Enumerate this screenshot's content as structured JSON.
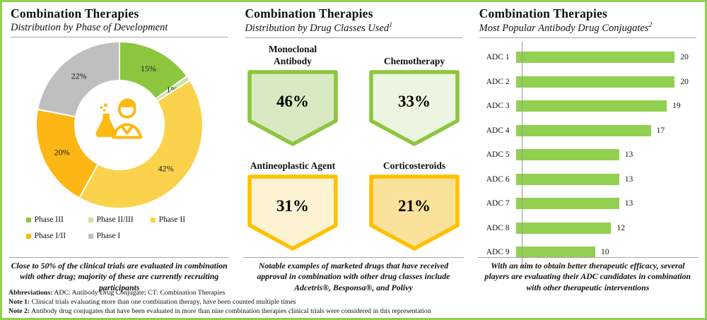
{
  "accent_colors": {
    "frame_green": "#92D050",
    "amber": "#FFC000",
    "rule_gray": "#A6A6A6"
  },
  "panels": {
    "phase": {
      "title": "Combination Therapies",
      "subtitle": "Distribution by Phase of Development",
      "summary": "Close to 50% of the clinical trials are evaluated in combination with other drug; majority of these are currently recruiting participants"
    },
    "classes": {
      "title": "Combination Therapies",
      "subtitle": "Distribution by Drug Classes Used",
      "subtitle_sup": "1",
      "summary": "Notable examples of marketed drugs that have received approval in combination with other drug classes include Adcetris®, Besponsa®, and Polivy"
    },
    "adc": {
      "title": "Combination Therapies",
      "subtitle": "Most Popular Antibody Drug Conjugates",
      "subtitle_sup": "2",
      "summary": "With an aim to obtain better therapeutic efficacy, several players are evaluating their ADC candidates in combination with other therapeutic interventions"
    }
  },
  "chart_data": [
    {
      "type": "pie",
      "donut": true,
      "title": "Distribution by Phase of Development",
      "labels": [
        "Phase III",
        "Phase II/III",
        "Phase II",
        "Phase I/II",
        "Phase I"
      ],
      "values": [
        15,
        1,
        42,
        20,
        22
      ],
      "unit": "%",
      "colors": [
        "#8CC63F",
        "#C9E3A2",
        "#FBD24C",
        "#FDB714",
        "#BFBFBF"
      ],
      "start_angle_deg": 0,
      "direction": "clockwise",
      "legend_position": "bottom",
      "center_icon": "scientist-flask-icon",
      "center_icon_color": "#FDB913"
    },
    {
      "type": "bar",
      "title": "Distribution by Drug Classes Used",
      "unit": "%",
      "items": [
        {
          "label": "Monoclonal\nAntibody",
          "value": "46%",
          "fill": "#D9E9C2",
          "border": "#8CC63F"
        },
        {
          "label": "Chemotherapy",
          "value": "33%",
          "fill": "#ECF5E0",
          "border": "#8CC63F"
        },
        {
          "label": "Antineoplastic Agent",
          "value": "31%",
          "fill": "#FDF3D2",
          "border": "#FFC000"
        },
        {
          "label": "Corticosteroids",
          "value": "21%",
          "fill": "#FBE29A",
          "border": "#FFC000"
        }
      ]
    },
    {
      "type": "bar",
      "orientation": "horizontal",
      "title": "Most Popular Antibody Drug Conjugates",
      "categories": [
        "ADC 1",
        "ADC 2",
        "ADC 3",
        "ADC 4",
        "ADC 5",
        "ADC 6",
        "ADC 7",
        "ADC 8",
        "ADC 9"
      ],
      "values": [
        20,
        20,
        19,
        17,
        13,
        13,
        13,
        12,
        10
      ],
      "xlim": [
        0,
        20
      ],
      "bar_color": "#92D050",
      "grid": false,
      "value_labels": true
    }
  ],
  "footer": {
    "lines": [
      {
        "label": "Abbreviations:",
        "text": " ADC: Antibody Drug Conjugate; CT: Combination Therapies"
      },
      {
        "label": "Note 1:",
        "text": " Clinical trials evaluating more than one combination therapy, have been counted multiple times"
      },
      {
        "label": "Note 2:",
        "text": " Antibody drug conjugates that have been evaluated in more than nine combination therapies clinical trials were considered in this representation"
      }
    ]
  }
}
